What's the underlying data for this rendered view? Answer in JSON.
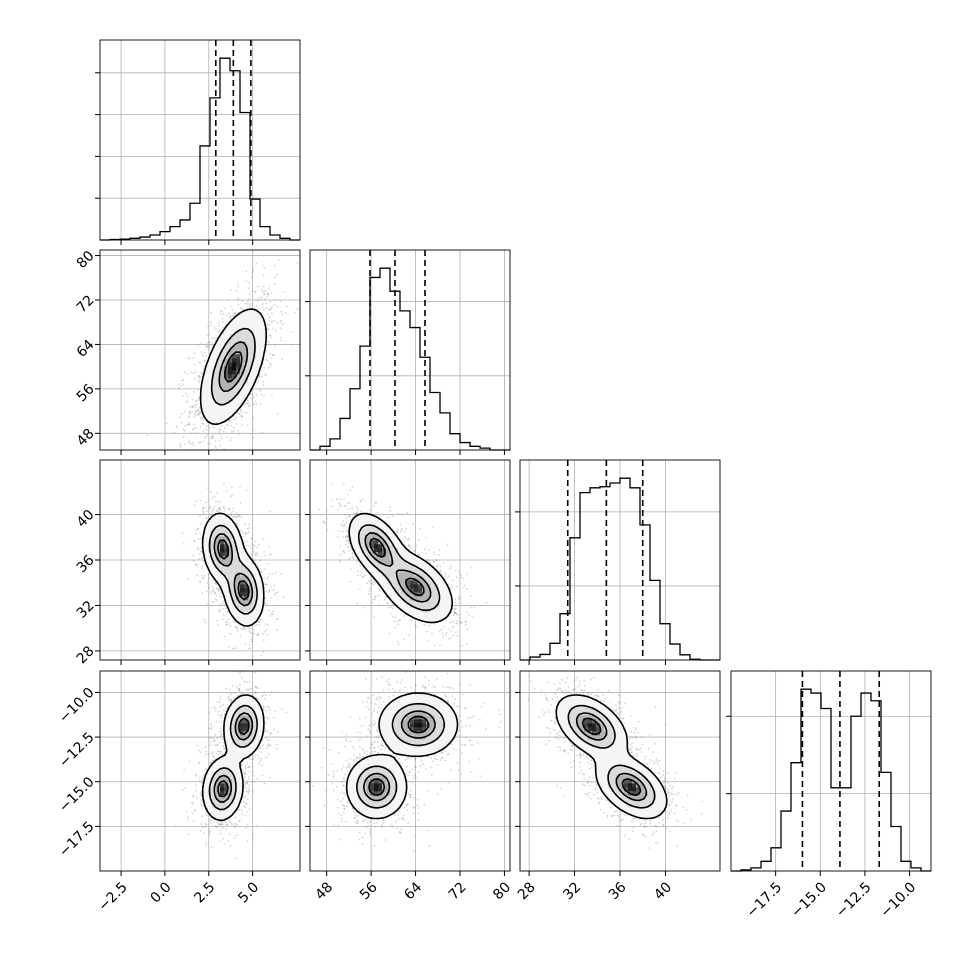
{
  "chart_data": {
    "type": "corner",
    "grid": true,
    "colors": {
      "ink": "#000000",
      "grid": "#b0b0b0",
      "background": "#ffffff"
    },
    "parameters": [
      {
        "index": 0,
        "range": [
          -3.7,
          7.7
        ],
        "ticks": [
          -2.5,
          0.0,
          2.5,
          5.0
        ],
        "tick_labels": [
          "−2.5",
          "0.0",
          "2.5",
          "5.0"
        ],
        "quantiles": [
          2.9,
          3.9,
          4.9
        ],
        "histogram": {
          "edges": [
            -3.7,
            -3.13,
            -2.56,
            -1.99,
            -1.42,
            -0.85,
            -0.28,
            0.29,
            0.86,
            1.43,
            2.0,
            2.57,
            3.14,
            3.71,
            4.28,
            4.85,
            5.42,
            5.99,
            6.56,
            7.13,
            7.7
          ],
          "counts": [
            0,
            1,
            2,
            4,
            7,
            12,
            20,
            32,
            48,
            88,
            225,
            340,
            435,
            405,
            305,
            98,
            32,
            12,
            4,
            0
          ]
        }
      },
      {
        "index": 1,
        "range": [
          45,
          81
        ],
        "ticks": [
          48,
          56,
          64,
          72,
          80
        ],
        "tick_labels": [
          "48",
          "56",
          "64",
          "72",
          "80"
        ],
        "quantiles": [
          55.8,
          60.3,
          65.7
        ],
        "histogram": {
          "edges": [
            45,
            46.8,
            48.6,
            50.4,
            52.2,
            54.0,
            55.8,
            57.6,
            59.4,
            61.2,
            63.0,
            64.8,
            66.6,
            68.4,
            70.2,
            72.0,
            73.8,
            75.6,
            77.4,
            79.2,
            81
          ],
          "counts": [
            0,
            10,
            30,
            85,
            165,
            280,
            465,
            490,
            428,
            375,
            330,
            250,
            155,
            100,
            44,
            20,
            10,
            5,
            0,
            0
          ]
        }
      },
      {
        "index": 2,
        "range": [
          27.2,
          44.8
        ],
        "ticks": [
          28,
          32,
          36,
          40
        ],
        "tick_labels": [
          "28",
          "32",
          "36",
          "40"
        ],
        "quantiles": [
          31.4,
          34.8,
          38.0
        ],
        "histogram": {
          "edges": [
            27.2,
            28.08,
            28.96,
            29.84,
            30.72,
            31.6,
            32.48,
            33.36,
            34.24,
            35.12,
            36.0,
            36.88,
            37.76,
            38.64,
            39.52,
            40.4,
            41.28,
            42.16,
            43.04,
            43.92,
            44.8
          ],
          "counts": [
            0,
            8,
            15,
            45,
            125,
            330,
            452,
            465,
            468,
            478,
            491,
            465,
            365,
            215,
            98,
            43,
            14,
            2,
            0,
            0
          ]
        }
      },
      {
        "index": 3,
        "range": [
          -20.0,
          -8.8
        ],
        "ticks": [
          -17.5,
          -15.0,
          -12.5,
          -10.0
        ],
        "tick_labels": [
          "−17.5",
          "−15.0",
          "−12.5",
          "−10.0"
        ],
        "quantiles": [
          -16.0,
          -13.9,
          -11.7
        ],
        "histogram": {
          "edges": [
            -20.0,
            -19.44,
            -18.88,
            -18.32,
            -17.76,
            -17.2,
            -16.64,
            -16.08,
            -15.52,
            -14.96,
            -14.4,
            -13.84,
            -13.28,
            -12.72,
            -12.16,
            -11.6,
            -11.04,
            -10.48,
            -9.92,
            -9.36,
            -8.8
          ],
          "counts": [
            0,
            3,
            8,
            25,
            60,
            155,
            280,
            470,
            460,
            420,
            215,
            215,
            400,
            460,
            440,
            255,
            115,
            25,
            8,
            0
          ]
        }
      }
    ],
    "pairs": [
      {
        "row": 1,
        "col": 0,
        "blobs": [
          {
            "center": [
              3.9,
              60.0
            ],
            "sigma": [
              0.9,
              5.0
            ],
            "rho": 0.55,
            "weight": 1
          }
        ]
      },
      {
        "row": 2,
        "col": 0,
        "blobs": [
          {
            "center": [
              3.3,
              37.0
            ],
            "sigma": [
              0.55,
              1.5
            ],
            "rho": -0.15,
            "weight": 1
          },
          {
            "center": [
              4.5,
              33.3
            ],
            "sigma": [
              0.55,
              1.5
            ],
            "rho": -0.15,
            "weight": 1
          }
        ]
      },
      {
        "row": 3,
        "col": 0,
        "blobs": [
          {
            "center": [
              4.5,
              -11.9
            ],
            "sigma": [
              0.55,
              0.85
            ],
            "rho": 0.1,
            "weight": 1
          },
          {
            "center": [
              3.3,
              -15.4
            ],
            "sigma": [
              0.55,
              0.85
            ],
            "rho": 0.1,
            "weight": 1
          }
        ]
      },
      {
        "row": 2,
        "col": 1,
        "blobs": [
          {
            "center": [
              57.0,
              37.2
            ],
            "sigma": [
              2.4,
              1.4
            ],
            "rho": -0.45,
            "weight": 1
          },
          {
            "center": [
              64.0,
              33.6
            ],
            "sigma": [
              3.2,
              1.5
            ],
            "rho": -0.45,
            "weight": 1
          }
        ]
      },
      {
        "row": 3,
        "col": 1,
        "blobs": [
          {
            "center": [
              64.5,
              -11.8
            ],
            "sigma": [
              3.4,
              0.85
            ],
            "rho": 0.0,
            "weight": 1
          },
          {
            "center": [
              57.0,
              -15.3
            ],
            "sigma": [
              2.6,
              0.85
            ],
            "rho": 0.0,
            "weight": 1
          }
        ]
      },
      {
        "row": 3,
        "col": 2,
        "blobs": [
          {
            "center": [
              33.5,
              -11.9
            ],
            "sigma": [
              1.5,
              0.85
            ],
            "rho": -0.45,
            "weight": 1
          },
          {
            "center": [
              37.0,
              -15.3
            ],
            "sigma": [
              1.5,
              0.85
            ],
            "rho": -0.45,
            "weight": 1
          }
        ]
      }
    ],
    "contour_levels": [
      0.118,
      0.393,
      0.675,
      0.865
    ]
  }
}
